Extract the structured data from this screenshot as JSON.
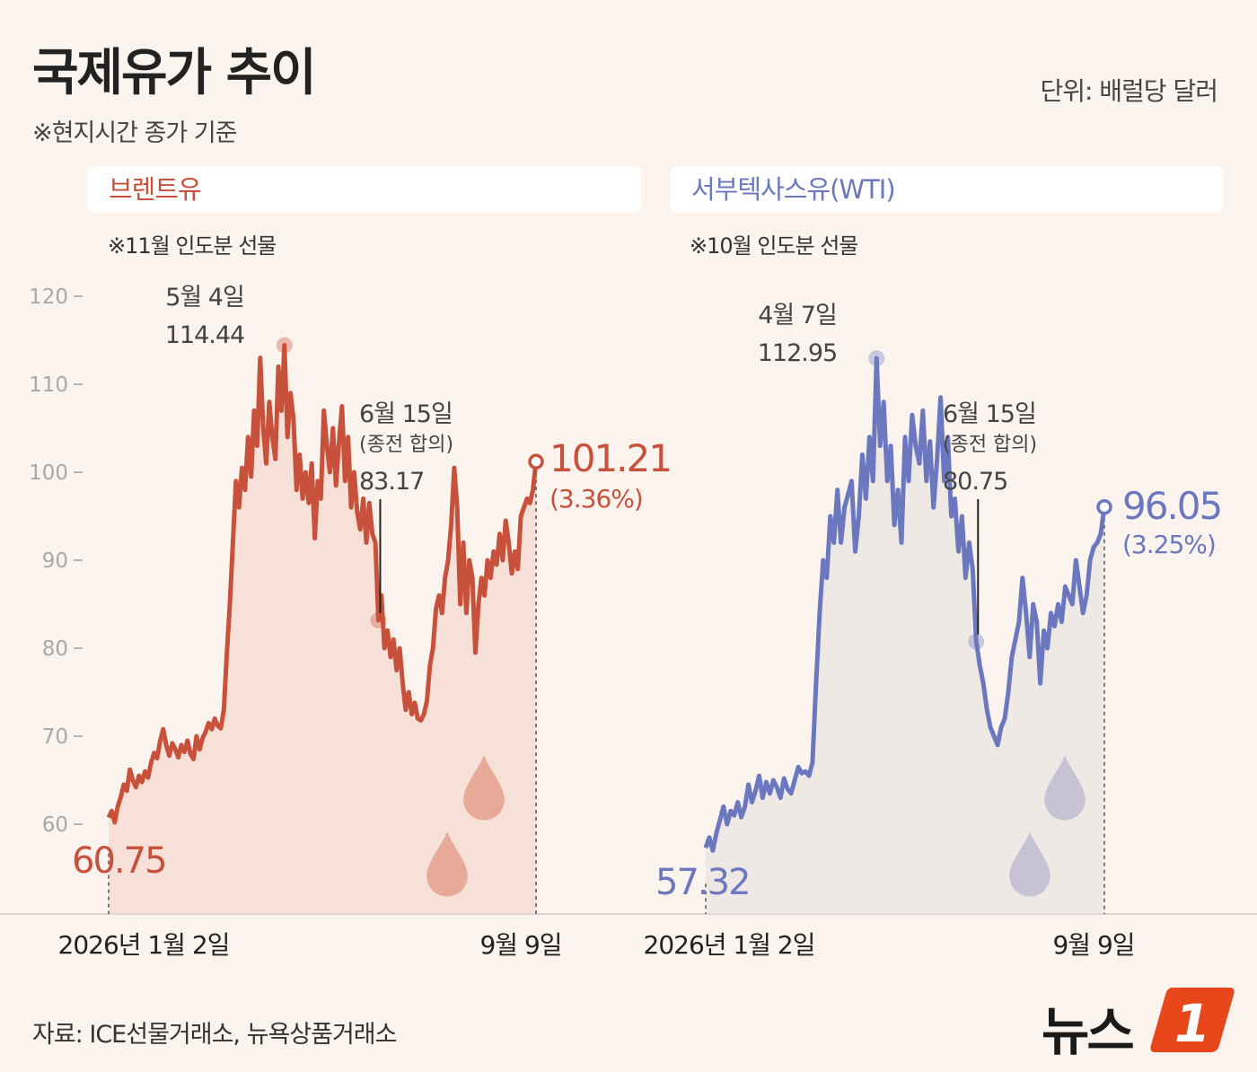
{
  "header": {
    "title": "국제유가 추이",
    "subtitle": "※현지시간 종가 기준",
    "unit": "단위: 배럴당 달러"
  },
  "footer": {
    "source": "자료: ICE선물거래소, 뉴욕상품거래소",
    "logo_text": "뉴스",
    "logo_mark": "1"
  },
  "colors": {
    "brent": "#c8513b",
    "brent_fill": "#f5dcd2",
    "wti": "#6b78bf",
    "wti_fill": "#ece6e4",
    "background": "#fbf3ee",
    "logo": "#e8471c"
  },
  "chart_data": [
    {
      "type": "area",
      "title": "브렌트유",
      "note": "※11월 인도분 선물",
      "y_ticks": [
        60,
        70,
        80,
        90,
        100,
        110,
        120
      ],
      "ylim": [
        50,
        125
      ],
      "x_labels": [
        "2026년 1월 2일",
        "9월 9일"
      ],
      "series": [
        {
          "values": [
            60.75,
            61.5,
            60.2,
            62.0,
            63.1,
            64.5,
            63.8,
            66.2,
            65.0,
            64.2,
            65.5,
            64.8,
            66.0,
            65.3,
            67.0,
            68.1,
            67.5,
            69.5,
            70.8,
            69.0,
            67.8,
            69.2,
            68.5,
            67.6,
            69.0,
            68.2,
            69.5,
            68.0,
            67.4,
            70.0,
            68.5,
            69.8,
            70.5,
            71.5,
            70.8,
            72.0,
            71.2,
            70.9,
            73.0,
            79.5,
            85.0,
            92.0,
            99.0,
            96.0,
            100.5,
            98.0,
            104.0,
            99.5,
            107.0,
            103.0,
            113.0,
            105.0,
            101.0,
            108.0,
            104.0,
            101.5,
            112.0,
            107.0,
            114.44,
            104.0,
            109.0,
            106.0,
            98.0,
            102.0,
            97.0,
            100.0,
            96.5,
            101.0,
            92.5,
            99.0,
            97.0,
            107.0,
            103.0,
            100.0,
            105.0,
            98.5,
            103.5,
            107.5,
            99.0,
            104.0,
            96.0,
            100.0,
            95.5,
            93.5,
            97.0,
            92.0,
            96.5,
            93.0,
            92.0,
            83.17,
            86.0,
            80.0,
            82.0,
            79.0,
            81.0,
            77.5,
            80.0,
            76.0,
            73.0,
            75.0,
            72.5,
            73.8,
            72.0,
            71.8,
            72.5,
            74.0,
            78.0,
            80.0,
            84.5,
            86.0,
            84.0,
            88.0,
            90.0,
            94.0,
            100.5,
            96.0,
            85.0,
            92.0,
            84.0,
            90.0,
            88.0,
            79.5,
            85.0,
            88.0,
            86.0,
            90.0,
            88.0,
            91.0,
            89.5,
            93.0,
            90.0,
            94.5,
            92.0,
            88.5,
            91.0,
            89.0,
            95.0,
            96.0,
            97.0,
            96.5,
            98.0,
            101.21
          ]
        }
      ],
      "annotations": [
        {
          "date": "5월 4일",
          "value": "114.44"
        },
        {
          "date": "6월 15일",
          "note": "(종전 합의)",
          "value": "83.17"
        }
      ],
      "start_label": "60.75",
      "end_label": "101.21",
      "end_change": "(3.36%)"
    },
    {
      "type": "area",
      "title": "서부텍사스유(WTI)",
      "note": "※10월 인도분 선물",
      "ylim": [
        50,
        125
      ],
      "x_labels": [
        "2026년 1월 2일",
        "9월 9일"
      ],
      "series": [
        {
          "values": [
            57.32,
            58.5,
            57.0,
            59.0,
            60.5,
            62.0,
            60.0,
            61.5,
            61.0,
            62.5,
            60.8,
            62.0,
            64.5,
            62.5,
            63.8,
            65.5,
            63.0,
            64.8,
            63.5,
            65.0,
            64.2,
            63.0,
            65.2,
            64.0,
            63.5,
            65.0,
            66.5,
            65.8,
            66.0,
            65.5,
            67.0,
            76.0,
            84.0,
            90.0,
            88.0,
            95.0,
            92.0,
            98.0,
            92.0,
            96.0,
            97.5,
            99.0,
            91.0,
            95.0,
            102.0,
            97.0,
            104.0,
            99.0,
            112.95,
            103.0,
            108.0,
            99.0,
            103.0,
            94.0,
            98.0,
            92.0,
            104.0,
            99.0,
            106.5,
            103.0,
            101.0,
            107.0,
            99.0,
            103.5,
            96.0,
            101.5,
            108.5,
            99.0,
            104.0,
            95.0,
            97.0,
            91.0,
            95.0,
            88.0,
            92.0,
            89.0,
            80.75,
            78.0,
            76.0,
            73.0,
            71.0,
            70.0,
            69.0,
            71.0,
            72.0,
            75.0,
            79.0,
            81.0,
            83.0,
            88.0,
            84.0,
            79.0,
            85.0,
            83.0,
            76.0,
            82.0,
            80.0,
            84.0,
            82.5,
            85.0,
            83.0,
            87.0,
            86.0,
            85.0,
            90.0,
            87.0,
            84.0,
            86.0,
            90.0,
            91.5,
            92.0,
            93.0,
            96.05
          ]
        }
      ],
      "annotations": [
        {
          "date": "4월 7일",
          "value": "112.95"
        },
        {
          "date": "6월 15일",
          "note": "(종전 합의)",
          "value": "80.75"
        }
      ],
      "start_label": "57.32",
      "end_label": "96.05",
      "end_change": "(3.25%)"
    }
  ]
}
